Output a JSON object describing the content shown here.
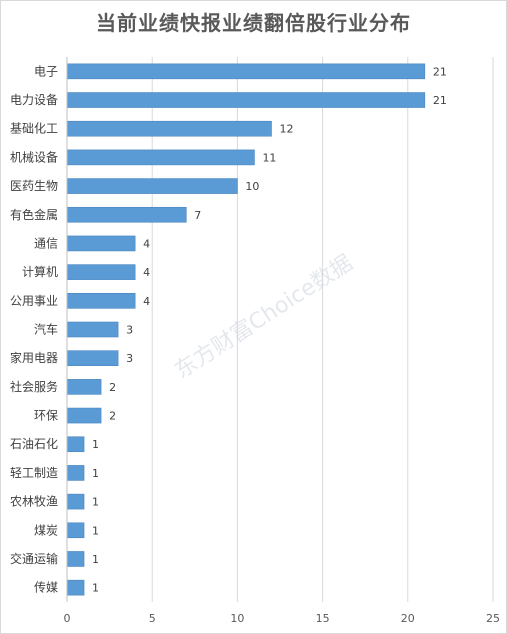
{
  "chart_data": {
    "type": "bar",
    "orientation": "horizontal",
    "title": "当前业绩快报业绩翻倍股行业分布",
    "categories": [
      "电子",
      "电力设备",
      "基础化工",
      "机械设备",
      "医药生物",
      "有色金属",
      "通信",
      "计算机",
      "公用事业",
      "汽车",
      "家用电器",
      "社会服务",
      "环保",
      "石油石化",
      "轻工制造",
      "农林牧渔",
      "煤炭",
      "交通运输",
      "传媒"
    ],
    "values": [
      21,
      21,
      12,
      11,
      10,
      7,
      4,
      4,
      4,
      3,
      3,
      2,
      2,
      1,
      1,
      1,
      1,
      1,
      1
    ],
    "xlim": [
      0,
      25
    ],
    "xticks": [
      "0",
      "5",
      "10",
      "15",
      "20",
      "25"
    ],
    "grid": true,
    "data_labels": true,
    "bar_color": "#5b9bd5",
    "watermark": "东方财富Choice数据"
  }
}
